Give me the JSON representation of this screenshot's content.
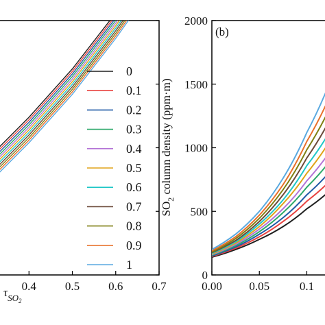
{
  "chart_data": [
    {
      "type": "line",
      "panel": "a",
      "xlabel": "τ",
      "xlabel_subscript": "SO",
      "xlabel_subscript2": "2",
      "ylabel": "",
      "xlim": [
        0.33,
        0.7
      ],
      "ylim": [
        0,
        2000
      ],
      "x_ticks": [
        0.4,
        0.5,
        0.6,
        0.7
      ],
      "x_tick_labels": [
        "0.4",
        "0.5",
        "0.6",
        "0.7"
      ],
      "y_ticks": [
        0,
        500,
        1000,
        1500,
        2000
      ],
      "y_tick_labels": [],
      "grid": false,
      "legend_position": "right",
      "legend": [
        "0",
        "0.1",
        "0.2",
        "0.3",
        "0.4",
        "0.5",
        "0.6",
        "0.7",
        "0.8",
        "0.9",
        "1"
      ],
      "series": [
        {
          "name": "0",
          "color": "#1f1f1f",
          "x": [
            0.33,
            0.4,
            0.5,
            0.6,
            0.65
          ],
          "y": [
            1000,
            1240,
            1620,
            2060,
            2300
          ]
        },
        {
          "name": "0.1",
          "color": "#e8423f",
          "x": [
            0.33,
            0.4,
            0.5,
            0.6,
            0.65
          ],
          "y": [
            980,
            1220,
            1600,
            2040,
            2280
          ]
        },
        {
          "name": "0.2",
          "color": "#1f5aa6",
          "x": [
            0.33,
            0.4,
            0.5,
            0.6,
            0.65
          ],
          "y": [
            960,
            1200,
            1580,
            2020,
            2260
          ]
        },
        {
          "name": "0.3",
          "color": "#2ca86a",
          "x": [
            0.33,
            0.4,
            0.5,
            0.6,
            0.65
          ],
          "y": [
            940,
            1180,
            1560,
            2000,
            2240
          ]
        },
        {
          "name": "0.4",
          "color": "#b373d6",
          "x": [
            0.33,
            0.4,
            0.5,
            0.6,
            0.65
          ],
          "y": [
            920,
            1160,
            1540,
            1980,
            2220
          ]
        },
        {
          "name": "0.5",
          "color": "#e0a418",
          "x": [
            0.33,
            0.4,
            0.5,
            0.6,
            0.65
          ],
          "y": [
            900,
            1140,
            1520,
            1960,
            2200
          ]
        },
        {
          "name": "0.6",
          "color": "#1ec7c7",
          "x": [
            0.33,
            0.4,
            0.5,
            0.6,
            0.65
          ],
          "y": [
            880,
            1120,
            1500,
            1940,
            2180
          ]
        },
        {
          "name": "0.7",
          "color": "#6b4a3a",
          "x": [
            0.33,
            0.4,
            0.5,
            0.6,
            0.65
          ],
          "y": [
            860,
            1100,
            1480,
            1920,
            2160
          ]
        },
        {
          "name": "0.8",
          "color": "#7f7f12",
          "x": [
            0.33,
            0.4,
            0.5,
            0.6,
            0.65
          ],
          "y": [
            840,
            1080,
            1460,
            1900,
            2140
          ]
        },
        {
          "name": "0.9",
          "color": "#e8702a",
          "x": [
            0.33,
            0.4,
            0.5,
            0.6,
            0.65
          ],
          "y": [
            820,
            1060,
            1440,
            1880,
            2120
          ]
        },
        {
          "name": "1",
          "color": "#5aa9e0",
          "x": [
            0.33,
            0.4,
            0.5,
            0.6,
            0.65
          ],
          "y": [
            800,
            1040,
            1420,
            1860,
            2100
          ]
        }
      ]
    },
    {
      "type": "line",
      "panel": "b",
      "panel_label": "(b)",
      "xlabel": "",
      "ylabel": "SO",
      "ylabel_subscript": "2",
      "ylabel_rest": " column density (ppm·m)",
      "xlim": [
        0,
        0.13
      ],
      "ylim": [
        0,
        2000
      ],
      "x_ticks": [
        0.0,
        0.05,
        0.1
      ],
      "x_tick_labels": [
        "0.00",
        "0.05",
        "0.1"
      ],
      "y_ticks": [
        0,
        500,
        1000,
        1500,
        2000
      ],
      "y_tick_labels": [
        "0",
        "500",
        "1000",
        "1500",
        "2000"
      ],
      "grid": false,
      "series": [
        {
          "name": "0",
          "color": "#1f1f1f",
          "x": [
            0,
            0.025,
            0.05,
            0.075,
            0.1,
            0.13
          ],
          "y": [
            140,
            200,
            280,
            380,
            520,
            700
          ]
        },
        {
          "name": "0.1",
          "color": "#e8423f",
          "x": [
            0,
            0.025,
            0.05,
            0.075,
            0.1,
            0.13
          ],
          "y": [
            145,
            210,
            300,
            420,
            580,
            780
          ]
        },
        {
          "name": "0.2",
          "color": "#1f5aa6",
          "x": [
            0,
            0.025,
            0.05,
            0.075,
            0.1,
            0.13
          ],
          "y": [
            150,
            220,
            320,
            450,
            630,
            860
          ]
        },
        {
          "name": "0.3",
          "color": "#2ca86a",
          "x": [
            0,
            0.025,
            0.05,
            0.075,
            0.1,
            0.13
          ],
          "y": [
            155,
            230,
            340,
            490,
            690,
            950
          ]
        },
        {
          "name": "0.4",
          "color": "#b373d6",
          "x": [
            0,
            0.025,
            0.05,
            0.075,
            0.1,
            0.13
          ],
          "y": [
            160,
            240,
            360,
            520,
            740,
            1030
          ]
        },
        {
          "name": "0.5",
          "color": "#e0a418",
          "x": [
            0,
            0.025,
            0.05,
            0.075,
            0.1,
            0.13
          ],
          "y": [
            165,
            250,
            380,
            560,
            800,
            1120
          ]
        },
        {
          "name": "0.6",
          "color": "#1ec7c7",
          "x": [
            0,
            0.025,
            0.05,
            0.075,
            0.1,
            0.13
          ],
          "y": [
            170,
            260,
            400,
            590,
            860,
            1200
          ]
        },
        {
          "name": "0.7",
          "color": "#6b4a3a",
          "x": [
            0,
            0.025,
            0.05,
            0.075,
            0.1,
            0.13
          ],
          "y": [
            175,
            270,
            420,
            630,
            920,
            1300
          ]
        },
        {
          "name": "0.8",
          "color": "#7f7f12",
          "x": [
            0,
            0.025,
            0.05,
            0.075,
            0.1,
            0.13
          ],
          "y": [
            180,
            285,
            445,
            670,
            985,
            1400
          ]
        },
        {
          "name": "0.9",
          "color": "#e8702a",
          "x": [
            0,
            0.025,
            0.05,
            0.075,
            0.1,
            0.13
          ],
          "y": [
            190,
            300,
            470,
            710,
            1050,
            1500
          ]
        },
        {
          "name": "1",
          "color": "#5aa9e0",
          "x": [
            0,
            0.025,
            0.05,
            0.075,
            0.1,
            0.13
          ],
          "y": [
            200,
            320,
            500,
            760,
            1120,
            1620
          ]
        }
      ]
    }
  ]
}
